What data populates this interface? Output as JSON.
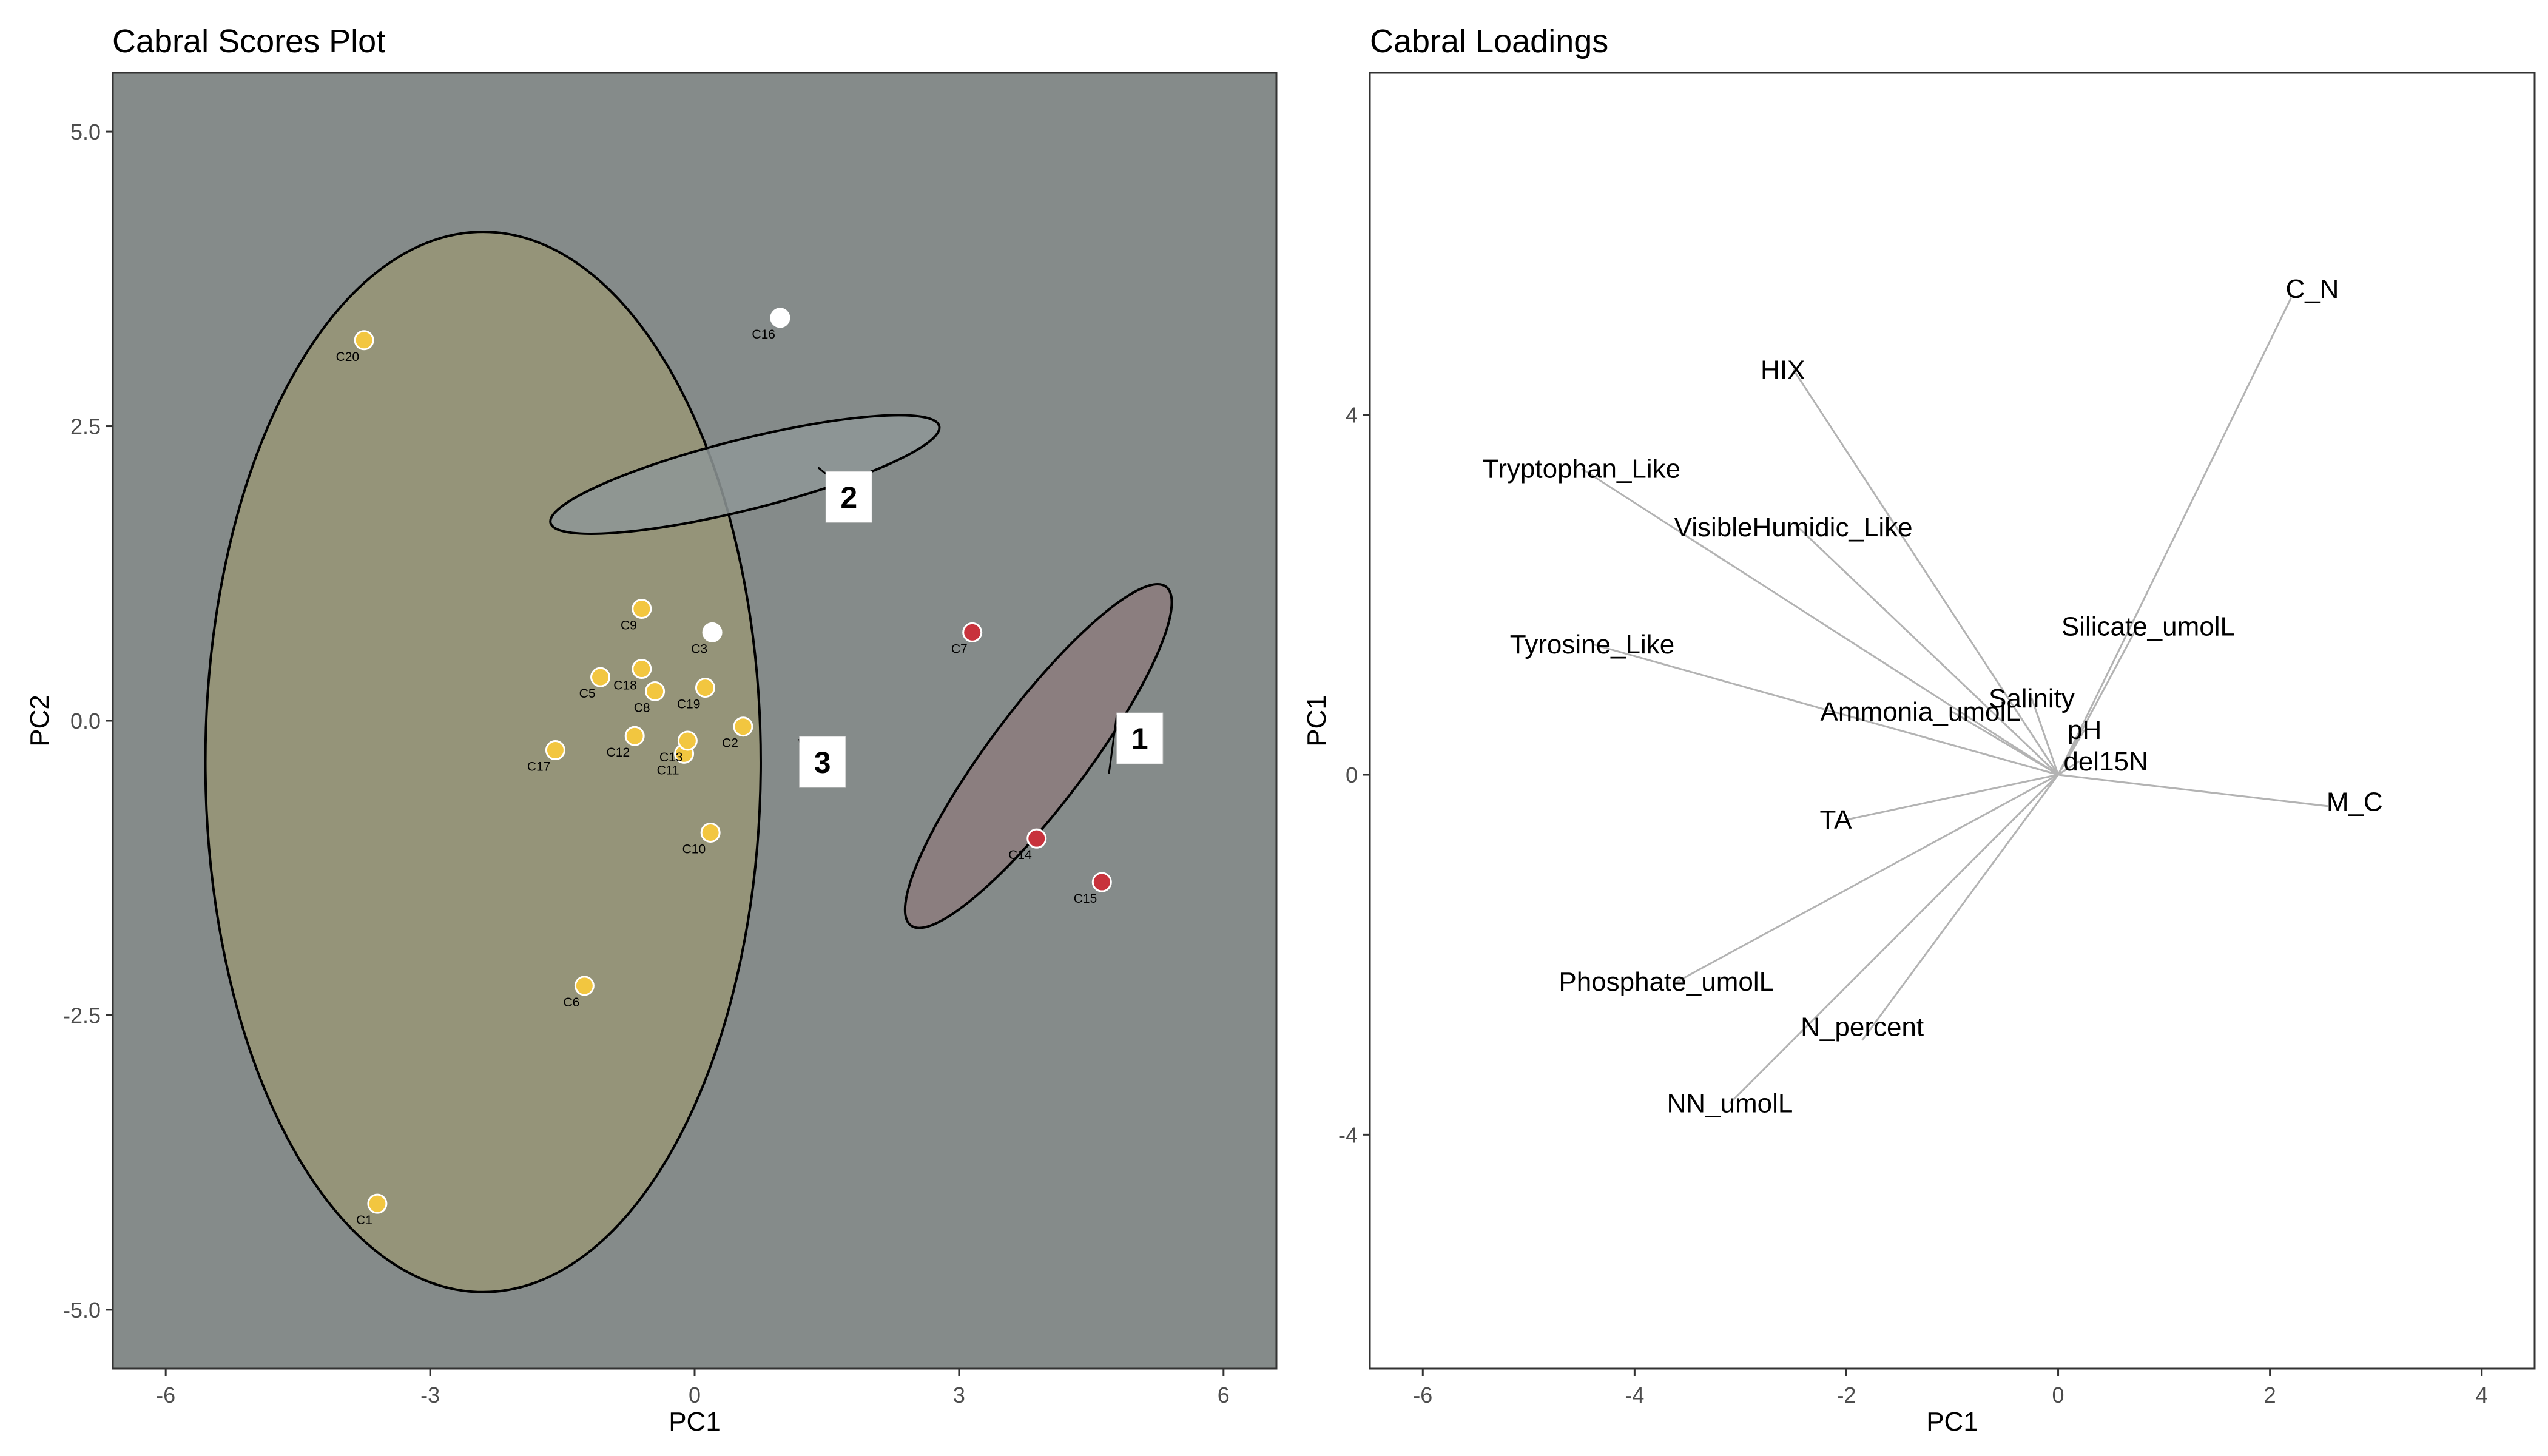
{
  "chart_data": [
    {
      "type": "scatter",
      "title": "Cabral Scores Plot",
      "xlabel": "PC1",
      "ylabel": "PC2",
      "xlim": [
        -6.6,
        6.6
      ],
      "ylim": [
        -5.5,
        5.5
      ],
      "x_ticks": [
        -6,
        -3,
        0,
        3,
        6
      ],
      "y_ticks": [
        5.0,
        2.5,
        0.0,
        -2.5,
        -5.0
      ],
      "x_tick_labels": [
        "-6",
        "-3",
        "0",
        "3",
        "6"
      ],
      "y_tick_labels": [
        "5.0",
        "2.5",
        "0.0",
        "-2.5",
        "-5.0"
      ],
      "background": "#858b8a",
      "clusters": [
        {
          "label": "1",
          "color": "#c8323c",
          "fill": "#8c7b7c",
          "label_pos": [
            5.05,
            -0.15
          ],
          "pointer": [
            4.7,
            -0.45
          ]
        },
        {
          "label": "2",
          "color": "#ffffff",
          "fill": "#8e9797",
          "label_pos": [
            1.75,
            1.9
          ],
          "pointer": [
            1.4,
            2.15
          ]
        },
        {
          "label": "3",
          "color": "#f2c640",
          "fill": "#989575",
          "label_pos": [
            1.45,
            -0.35
          ],
          "pointer": [
            1.2,
            -0.2
          ]
        }
      ],
      "ellipses": [
        {
          "cluster": "3",
          "cx": -2.4,
          "cy": -0.35,
          "rx": 3.15,
          "ry": 4.5,
          "angle_deg": 0
        },
        {
          "cluster": "2",
          "cx": 0.57,
          "cy": 2.09,
          "rx": 0.4,
          "ry": 1.7,
          "angle_deg": 76
        },
        {
          "cluster": "1",
          "cx": 3.9,
          "cy": -0.3,
          "rx": 0.55,
          "ry": 1.8,
          "angle_deg": 37
        }
      ],
      "points": [
        {
          "label": "C1",
          "x": -3.6,
          "y": -4.1,
          "cluster": "3"
        },
        {
          "label": "C2",
          "x": 0.55,
          "y": -0.05,
          "cluster": "3"
        },
        {
          "label": "C3",
          "x": 0.2,
          "y": 0.75,
          "cluster": "2"
        },
        {
          "label": "C5",
          "x": -1.07,
          "y": 0.37,
          "cluster": "3"
        },
        {
          "label": "C6",
          "x": -1.25,
          "y": -2.25,
          "cluster": "3"
        },
        {
          "label": "C7",
          "x": 3.15,
          "y": 0.75,
          "cluster": "1"
        },
        {
          "label": "C8",
          "x": -0.45,
          "y": 0.25,
          "cluster": "3"
        },
        {
          "label": "C9",
          "x": -0.6,
          "y": 0.95,
          "cluster": "3"
        },
        {
          "label": "C10",
          "x": 0.18,
          "y": -0.95,
          "cluster": "3"
        },
        {
          "label": "C11",
          "x": -0.12,
          "y": -0.28,
          "cluster": "3"
        },
        {
          "label": "C12",
          "x": -0.68,
          "y": -0.13,
          "cluster": "3"
        },
        {
          "label": "C13",
          "x": -0.08,
          "y": -0.17,
          "cluster": "3"
        },
        {
          "label": "C14",
          "x": 3.88,
          "y": -1.0,
          "cluster": "1"
        },
        {
          "label": "C15",
          "x": 4.62,
          "y": -1.37,
          "cluster": "1"
        },
        {
          "label": "C16",
          "x": 0.97,
          "y": 3.42,
          "cluster": "2"
        },
        {
          "label": "C17",
          "x": -1.58,
          "y": -0.25,
          "cluster": "3"
        },
        {
          "label": "C18",
          "x": -0.6,
          "y": 0.44,
          "cluster": "3"
        },
        {
          "label": "C19",
          "x": 0.12,
          "y": 0.28,
          "cluster": "3"
        },
        {
          "label": "C20",
          "x": -3.75,
          "y": 3.23,
          "cluster": "3"
        }
      ]
    },
    {
      "type": "biplot-loadings",
      "title": "Cabral Loadings",
      "xlabel": "PC1",
      "ylabel": "PC1",
      "xlim": [
        -6.5,
        4.5
      ],
      "ylim": [
        -6.6,
        7.8
      ],
      "x_ticks": [
        -6,
        -4,
        -2,
        0,
        2,
        4
      ],
      "y_ticks": [
        4,
        0,
        -4
      ],
      "x_tick_labels": [
        "-6",
        "-4",
        "-2",
        "0",
        "2",
        "4"
      ],
      "y_tick_labels": [
        "4",
        "0",
        "-4"
      ],
      "line_color": "#b3b3b3",
      "loadings": [
        {
          "label": "C_N",
          "x": 2.2,
          "y": 5.3
        },
        {
          "label": "HIX",
          "x": -2.5,
          "y": 4.5
        },
        {
          "label": "Tryptophan_Like",
          "x": -4.5,
          "y": 3.4
        },
        {
          "label": "VisibleHumidic_Like",
          "x": -2.5,
          "y": 2.8
        },
        {
          "label": "Silicate_umolL",
          "x": 0.75,
          "y": 1.65
        },
        {
          "label": "Tyrosine_Like",
          "x": -4.4,
          "y": 1.45
        },
        {
          "label": "Salinity",
          "x": -0.25,
          "y": 0.85
        },
        {
          "label": "Ammonia_umolL",
          "x": -1.0,
          "y": 0.7
        },
        {
          "label": "pH",
          "x": 0.25,
          "y": 0.5
        },
        {
          "label": "del15N",
          "x": 0.2,
          "y": 0.15
        },
        {
          "label": "M_C",
          "x": 2.55,
          "y": -0.35
        },
        {
          "label": "TA",
          "x": -2.0,
          "y": -0.5
        },
        {
          "label": "Phosphate_umolL",
          "x": -3.6,
          "y": -2.3
        },
        {
          "label": "N_percent",
          "x": -1.85,
          "y": -2.95
        },
        {
          "label": "NN_umolL",
          "x": -3.1,
          "y": -3.65
        }
      ],
      "label_positions": [
        {
          "label": "C_N",
          "x": 2.4,
          "y": 5.4
        },
        {
          "label": "HIX",
          "x": -2.6,
          "y": 4.5
        },
        {
          "label": "Tryptophan_Like",
          "x": -4.5,
          "y": 3.4
        },
        {
          "label": "VisibleHumidic_Like",
          "x": -2.5,
          "y": 2.75
        },
        {
          "label": "Silicate_umolL",
          "x": 0.85,
          "y": 1.65
        },
        {
          "label": "Tyrosine_Like",
          "x": -4.4,
          "y": 1.45
        },
        {
          "label": "Salinity",
          "x": -0.25,
          "y": 0.85
        },
        {
          "label": "Ammonia_umolL",
          "x": -1.3,
          "y": 0.7
        },
        {
          "label": "pH",
          "x": 0.25,
          "y": 0.5
        },
        {
          "label": "del15N",
          "x": 0.45,
          "y": 0.15
        },
        {
          "label": "M_C",
          "x": 2.8,
          "y": -0.3
        },
        {
          "label": "TA",
          "x": -2.1,
          "y": -0.5
        },
        {
          "label": "Phosphate_umolL",
          "x": -3.7,
          "y": -2.3
        },
        {
          "label": "N_percent",
          "x": -1.85,
          "y": -2.8
        },
        {
          "label": "NN_umolL",
          "x": -3.1,
          "y": -3.65
        }
      ]
    }
  ]
}
